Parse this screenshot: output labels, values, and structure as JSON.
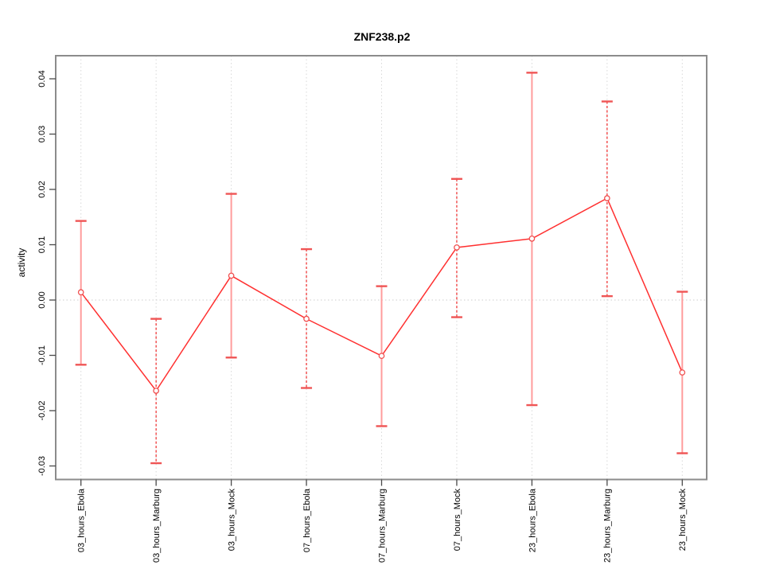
{
  "chart_data": {
    "type": "line",
    "title": "ZNF238.p2",
    "ylabel": "activity",
    "xlabel": "",
    "categories": [
      "03_hours_Ebola",
      "03_hours_Marburg",
      "03_hours_Mock",
      "07_hours_Ebola",
      "07_hours_Marburg",
      "07_hours_Mock",
      "23_hours_Ebola",
      "23_hours_Marburg",
      "23_hours_Mock"
    ],
    "series": [
      {
        "name": "activity",
        "values": [
          0.0014,
          -0.0164,
          0.0044,
          -0.0034,
          -0.0101,
          0.0095,
          0.0111,
          0.0184,
          -0.0131
        ],
        "lower": [
          -0.0117,
          -0.0295,
          -0.0104,
          -0.0159,
          -0.0228,
          -0.0031,
          -0.019,
          0.0007,
          -0.0277
        ],
        "upper": [
          0.0143,
          -0.0034,
          0.0192,
          0.0092,
          0.0025,
          0.0219,
          0.0411,
          0.0359,
          0.0015
        ],
        "bar_styles": [
          "solid",
          "dashed",
          "solid",
          "dashed",
          "solid",
          "dashed",
          "solid",
          "dashed",
          "solid"
        ]
      }
    ],
    "yticks": [
      -0.03,
      -0.02,
      -0.01,
      0.0,
      0.01,
      0.02,
      0.03,
      0.04
    ],
    "ytick_labels": [
      "-0.03",
      "-0.02",
      "-0.01",
      "0.00",
      "0.01",
      "0.02",
      "0.03",
      "0.04"
    ],
    "ylim": [
      -0.0324,
      0.0442
    ],
    "zero_line": true,
    "grid": "vertical-dotted",
    "legend": "none",
    "colors": {
      "line": "#ff3030",
      "marker_stroke": "#f05050",
      "marker_fill": "#ffffff",
      "error_bar": "#f03838",
      "error_bar_light": "#ff9c9c",
      "cap": "#ef5555",
      "grid": "#d8d8d8",
      "zero_line": "#cccccc",
      "box": "#8c8c8c",
      "tick": "#4a4a4a",
      "text": "#000000"
    }
  }
}
